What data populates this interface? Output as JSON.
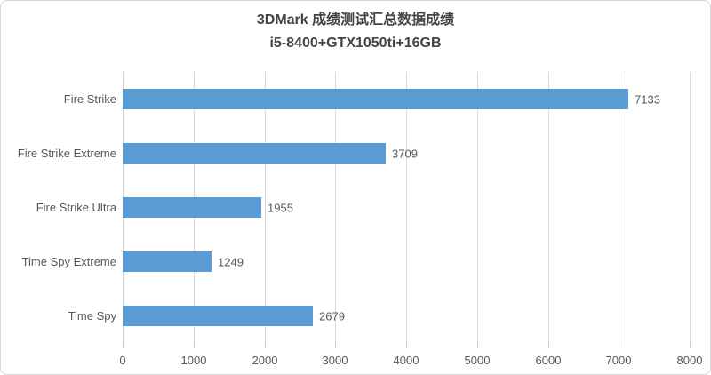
{
  "chart_data": {
    "type": "bar",
    "orientation": "horizontal",
    "title": "3DMark 成绩测试汇总数据成绩",
    "subtitle": "i5-8400+GTX1050ti+16GB",
    "categories": [
      "Fire Strike",
      "Fire Strike Extreme",
      "Fire Strike Ultra",
      "Time Spy Extreme",
      "Time Spy"
    ],
    "values": [
      7133,
      3709,
      1955,
      1249,
      2679
    ],
    "data_labels": [
      "7133",
      "3709",
      "1955",
      "1249",
      "2679"
    ],
    "xlim": [
      0,
      8000
    ],
    "x_ticks": [
      0,
      1000,
      2000,
      3000,
      4000,
      5000,
      6000,
      7000,
      8000
    ],
    "x_tick_labels": [
      "0",
      "1000",
      "2000",
      "3000",
      "4000",
      "5000",
      "6000",
      "7000",
      "8000"
    ],
    "ylabel": "",
    "xlabel": "",
    "legend": "none",
    "grid": "vertical-major",
    "colors": {
      "bar": "#5B9BD5",
      "gridline": "#D9D9D9",
      "tick_mark": "#C9C9C9",
      "title_text": "#444444",
      "axis_text": "#595959",
      "data_label_text": "#595959",
      "background": "#FFFFFF",
      "chart_border": "#D7D7D7"
    }
  }
}
